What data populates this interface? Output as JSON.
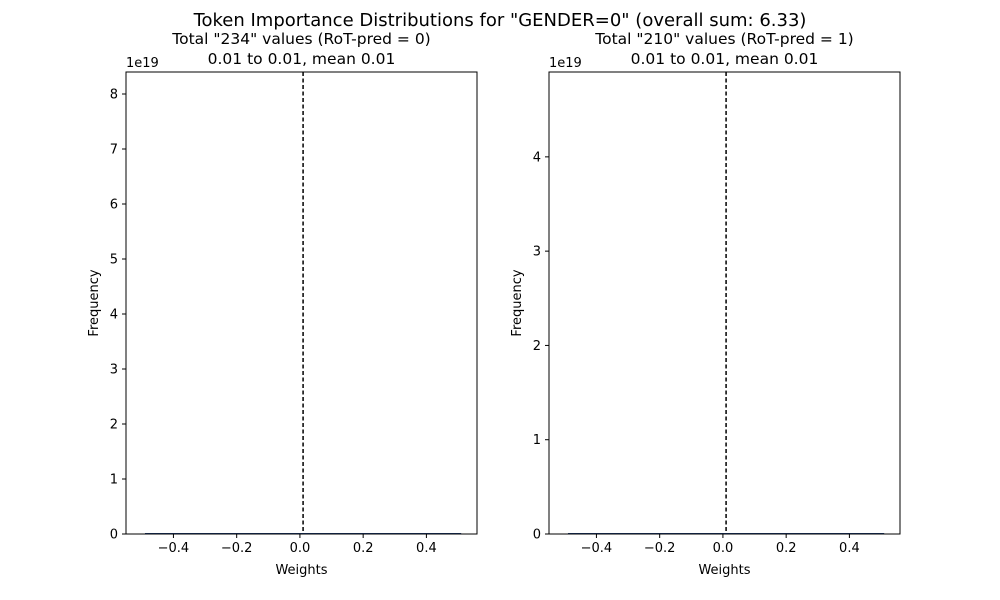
{
  "figure": {
    "suptitle": "Token Importance Distributions for \"GENDER=0\" (overall  sum: 6.33)"
  },
  "chart_data": [
    {
      "type": "histogram",
      "title_line1": "Total \"234\" values (RoT-pred = 0)",
      "title_line2": "0.01 to 0.01, mean 0.01",
      "xlabel": "Weights",
      "ylabel": "Frequency",
      "y_offset_label": "1e19",
      "xlim": [
        -0.55,
        0.56
      ],
      "ylim": [
        0,
        8.4
      ],
      "xticks": [
        -0.4,
        -0.2,
        0.0,
        0.2,
        0.4
      ],
      "xtick_labels": [
        "−0.4",
        "−0.2",
        "0.0",
        "0.2",
        "0.4"
      ],
      "yticks": [
        0,
        1,
        2,
        3,
        4,
        5,
        6,
        7,
        8
      ],
      "ytick_labels": [
        "0",
        "1",
        "2",
        "3",
        "4",
        "5",
        "6",
        "7",
        "8"
      ],
      "mean_line": 0.01,
      "mean_line_style": "dashed",
      "bin_range": [
        -0.49,
        0.51
      ],
      "frame_color": "#000000"
    },
    {
      "type": "histogram",
      "title_line1": "Total \"210\" values (RoT-pred = 1)",
      "title_line2": "0.01 to 0.01, mean 0.01",
      "xlabel": "Weights",
      "ylabel": "Frequency",
      "y_offset_label": "1e19",
      "xlim": [
        -0.55,
        0.56
      ],
      "ylim": [
        0,
        4.9
      ],
      "xticks": [
        -0.4,
        -0.2,
        0.0,
        0.2,
        0.4
      ],
      "xtick_labels": [
        "−0.4",
        "−0.2",
        "0.0",
        "0.2",
        "0.4"
      ],
      "yticks": [
        0,
        1,
        2,
        3,
        4
      ],
      "ytick_labels": [
        "0",
        "1",
        "2",
        "3",
        "4"
      ],
      "mean_line": 0.01,
      "mean_line_style": "dashed",
      "bin_range": [
        -0.49,
        0.51
      ],
      "frame_color": "#000000"
    }
  ]
}
